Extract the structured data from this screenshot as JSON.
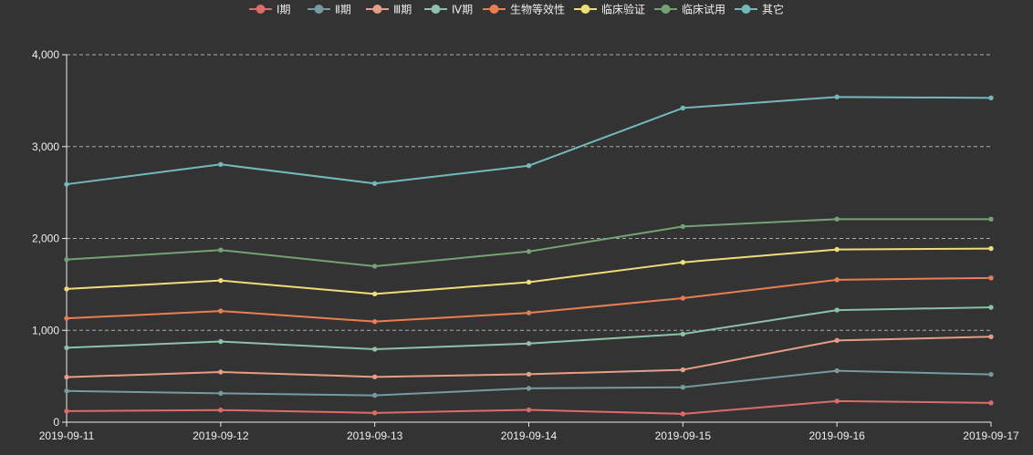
{
  "chart_data": {
    "type": "line",
    "categories": [
      "2019-09-11",
      "2019-09-12",
      "2019-09-13",
      "2019-09-14",
      "2019-09-15",
      "2019-09-16",
      "2019-09-17"
    ],
    "ylim": [
      0,
      4000
    ],
    "yticks": [
      0,
      1000,
      2000,
      3000,
      4000
    ],
    "ytick_labels": [
      "0",
      "1,000",
      "2,000",
      "3,000",
      "4,000"
    ],
    "grid": true,
    "legend_position": "top-center",
    "series": [
      {
        "name": "Ⅰ期",
        "color": "#dd6b66",
        "values": [
          120,
          132,
          101,
          134,
          90,
          230,
          210
        ]
      },
      {
        "name": "Ⅱ期",
        "color": "#759aa0",
        "values": [
          220,
          182,
          191,
          234,
          290,
          330,
          310
        ]
      },
      {
        "name": "Ⅲ期",
        "color": "#e69d87",
        "values": [
          150,
          232,
          201,
          154,
          190,
          330,
          410
        ]
      },
      {
        "name": "Ⅳ期",
        "color": "#8dc1a9",
        "values": [
          320,
          332,
          301,
          334,
          390,
          330,
          320
        ]
      },
      {
        "name": "生物等效性",
        "color": "#ea7e53",
        "values": [
          320,
          332,
          301,
          334,
          390,
          330,
          320
        ]
      },
      {
        "name": "临床验证",
        "color": "#eedd78",
        "values": [
          320,
          332,
          301,
          334,
          390,
          330,
          320
        ]
      },
      {
        "name": "临床试用",
        "color": "#73a373",
        "values": [
          320,
          332,
          301,
          334,
          390,
          330,
          320
        ]
      },
      {
        "name": "其它",
        "color": "#73b9bc",
        "values": [
          820,
          932,
          901,
          934,
          1290,
          1330,
          1320
        ]
      }
    ]
  }
}
